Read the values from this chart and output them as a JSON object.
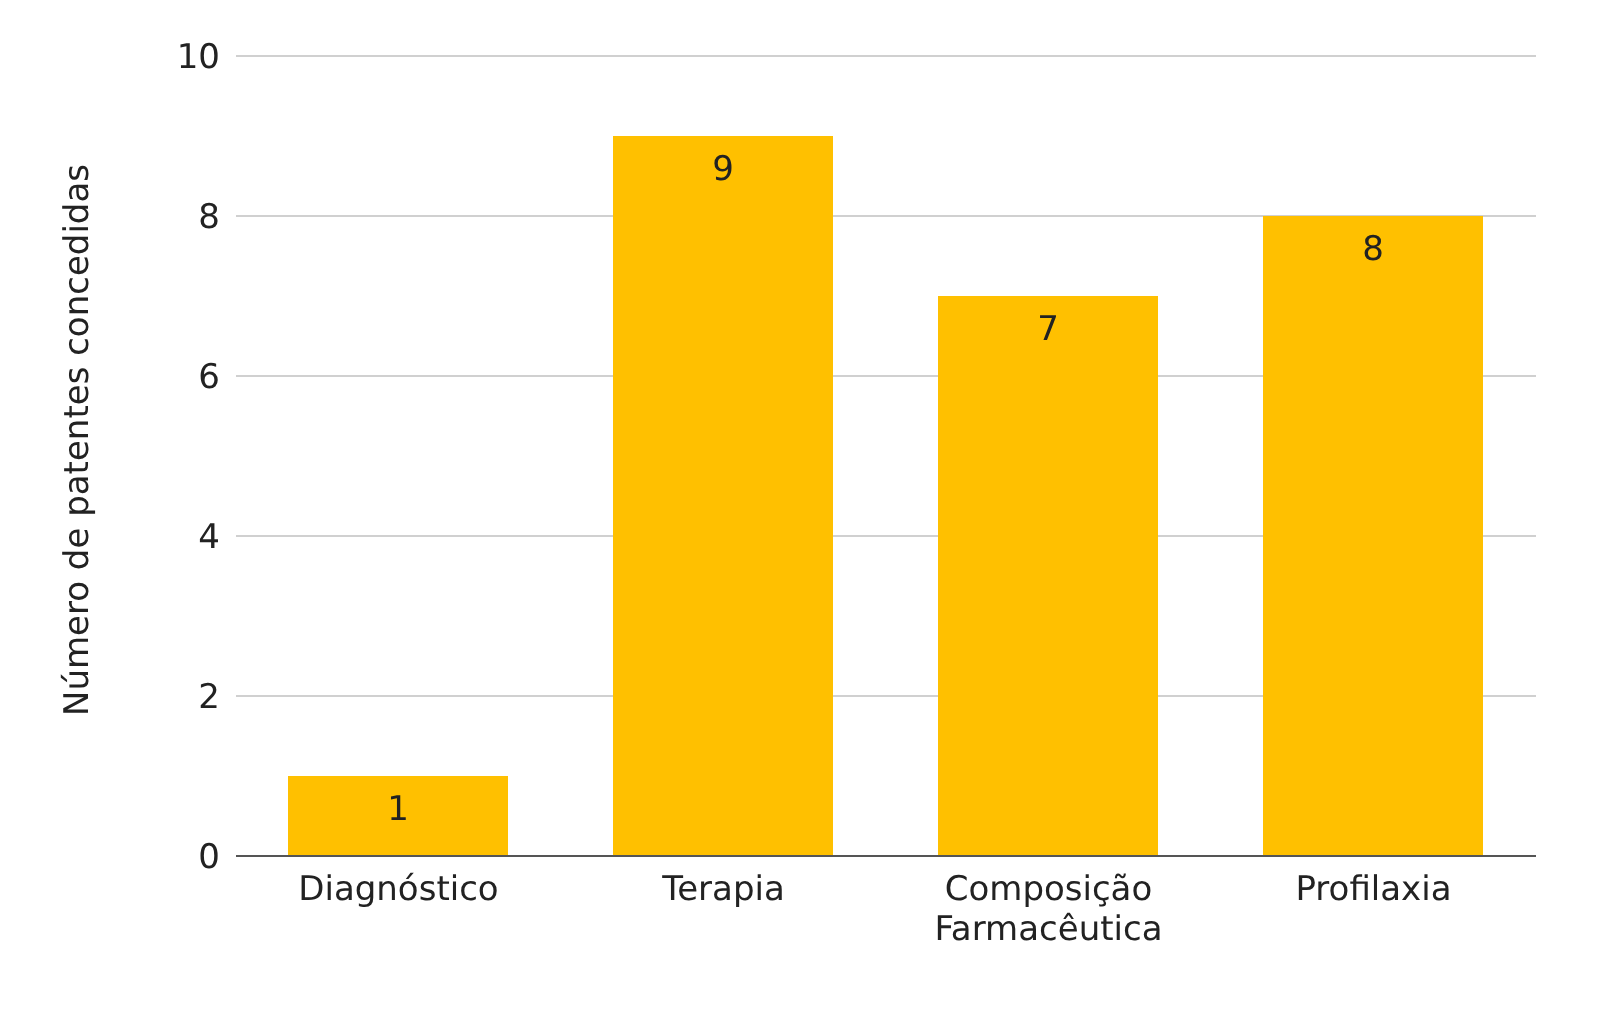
{
  "chart_data": {
    "type": "bar",
    "ylabel": "Número de patentes concedidas",
    "categories": [
      "Diagnóstico",
      "Terapia",
      "Composição Farmacêutica",
      "Profilaxia"
    ],
    "values": [
      1,
      9,
      7,
      8
    ],
    "color": "#ffc000",
    "ylim": [
      0,
      10
    ],
    "yticks": [
      0,
      2,
      4,
      6,
      8,
      10
    ],
    "grid": "y",
    "data_labels": true
  }
}
